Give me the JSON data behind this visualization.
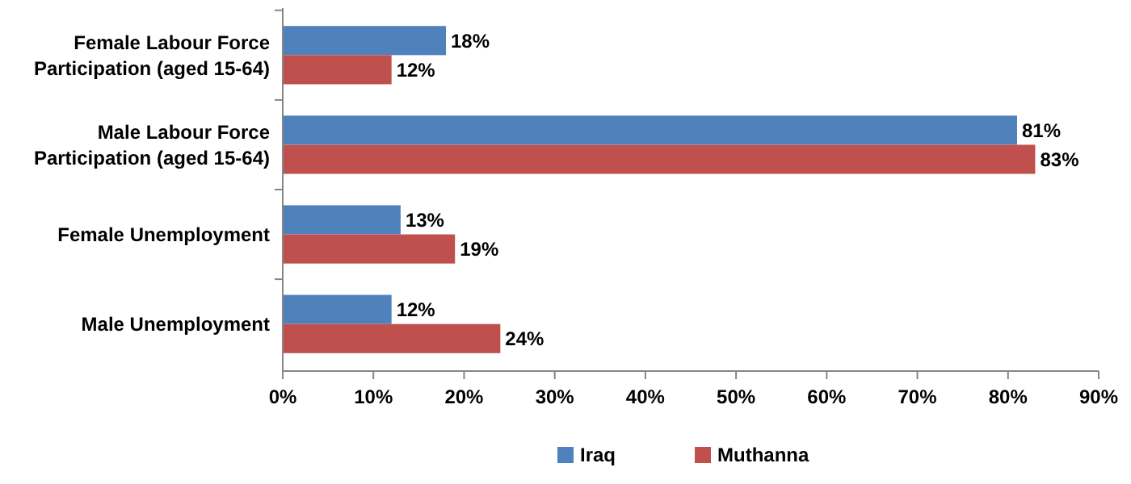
{
  "chart_data": {
    "type": "bar",
    "orientation": "horizontal",
    "categories": [
      "Female Labour Force Participation (aged 15-64)",
      "Male Labour Force Participation (aged 15-64)",
      "Female Unemployment",
      "Male Unemployment"
    ],
    "series": [
      {
        "name": "Iraq",
        "color": "#4f81bd",
        "values": [
          18,
          81,
          13,
          12
        ],
        "value_labels": [
          "18%",
          "81%",
          "13%",
          "12%"
        ]
      },
      {
        "name": "Muthanna",
        "color": "#c0504d",
        "values": [
          12,
          83,
          19,
          24
        ],
        "value_labels": [
          "12%",
          "83%",
          "19%",
          "24%"
        ]
      }
    ],
    "xlim": [
      0,
      90
    ],
    "xticks": [
      {
        "value": 0,
        "label": "0%"
      },
      {
        "value": 10,
        "label": "10%"
      },
      {
        "value": 20,
        "label": "20%"
      },
      {
        "value": 30,
        "label": "30%"
      },
      {
        "value": 40,
        "label": "40%"
      },
      {
        "value": 50,
        "label": "50%"
      },
      {
        "value": 60,
        "label": "60%"
      },
      {
        "value": 70,
        "label": "70%"
      },
      {
        "value": 80,
        "label": "80%"
      },
      {
        "value": 90,
        "label": "90%"
      }
    ],
    "grid": false,
    "legend": "bottom"
  }
}
